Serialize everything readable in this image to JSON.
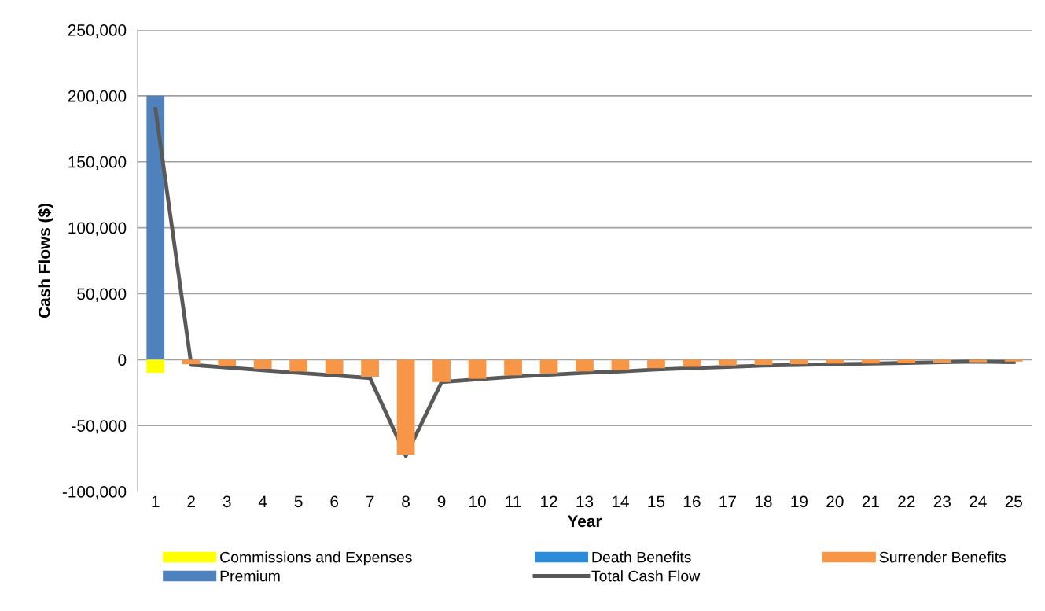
{
  "chart_data": {
    "type": "bar",
    "stacked": true,
    "xlabel": "Year",
    "ylabel": "Cash Flows ($)",
    "categories": [
      "1",
      "2",
      "3",
      "4",
      "5",
      "6",
      "7",
      "8",
      "9",
      "10",
      "11",
      "12",
      "13",
      "14",
      "15",
      "16",
      "17",
      "18",
      "19",
      "20",
      "21",
      "22",
      "23",
      "24",
      "25"
    ],
    "series": [
      {
        "name": "Commissions and Expenses",
        "color": "#ffff00",
        "values": [
          -10000,
          0,
          0,
          0,
          0,
          0,
          0,
          0,
          0,
          0,
          0,
          0,
          0,
          0,
          0,
          0,
          0,
          0,
          0,
          0,
          0,
          0,
          0,
          0,
          0
        ]
      },
      {
        "name": "Death Benefits",
        "color": "#2e8bd8",
        "values": [
          0,
          0,
          0,
          0,
          0,
          0,
          0,
          0,
          0,
          0,
          0,
          0,
          0,
          0,
          0,
          0,
          0,
          0,
          0,
          0,
          0,
          0,
          0,
          0,
          0
        ]
      },
      {
        "name": "Surrender Benefits",
        "color": "#f79646",
        "values": [
          0,
          -3500,
          -5000,
          -7000,
          -9000,
          -11000,
          -13000,
          -72000,
          -17000,
          -14500,
          -12000,
          -10500,
          -9000,
          -8000,
          -6500,
          -5500,
          -4500,
          -4000,
          -3500,
          -3000,
          -3000,
          -2800,
          -2300,
          -2000,
          -1500
        ]
      },
      {
        "name": "Premium",
        "color": "#4f81bd",
        "values": [
          200000,
          0,
          0,
          0,
          0,
          0,
          0,
          0,
          0,
          0,
          0,
          0,
          0,
          0,
          0,
          0,
          0,
          0,
          0,
          0,
          0,
          0,
          0,
          0,
          0
        ]
      },
      {
        "name": "Total Cash Flow",
        "type": "line",
        "color": "#595959",
        "values": [
          190000,
          -4000,
          -6000,
          -8000,
          -10000,
          -12000,
          -14000,
          -73000,
          -17000,
          -15000,
          -13000,
          -11500,
          -10000,
          -9000,
          -7500,
          -6500,
          -5500,
          -4500,
          -4000,
          -3500,
          -3000,
          -2500,
          -2000,
          -1500,
          -2000
        ]
      }
    ],
    "ylim": [
      -100000,
      250000
    ],
    "yticks": [
      {
        "value": -100000,
        "label": "-100,000"
      },
      {
        "value": -50000,
        "label": "-50,000"
      },
      {
        "value": 0,
        "label": "0"
      },
      {
        "value": 50000,
        "label": "50,000"
      },
      {
        "value": 100000,
        "label": "100,000"
      },
      {
        "value": 150000,
        "label": "150,000"
      },
      {
        "value": 200000,
        "label": "200,000"
      },
      {
        "value": 250000,
        "label": "250,000"
      }
    ],
    "grid": "y",
    "legend": "bottom",
    "marker": "none",
    "line_style": "solid"
  }
}
